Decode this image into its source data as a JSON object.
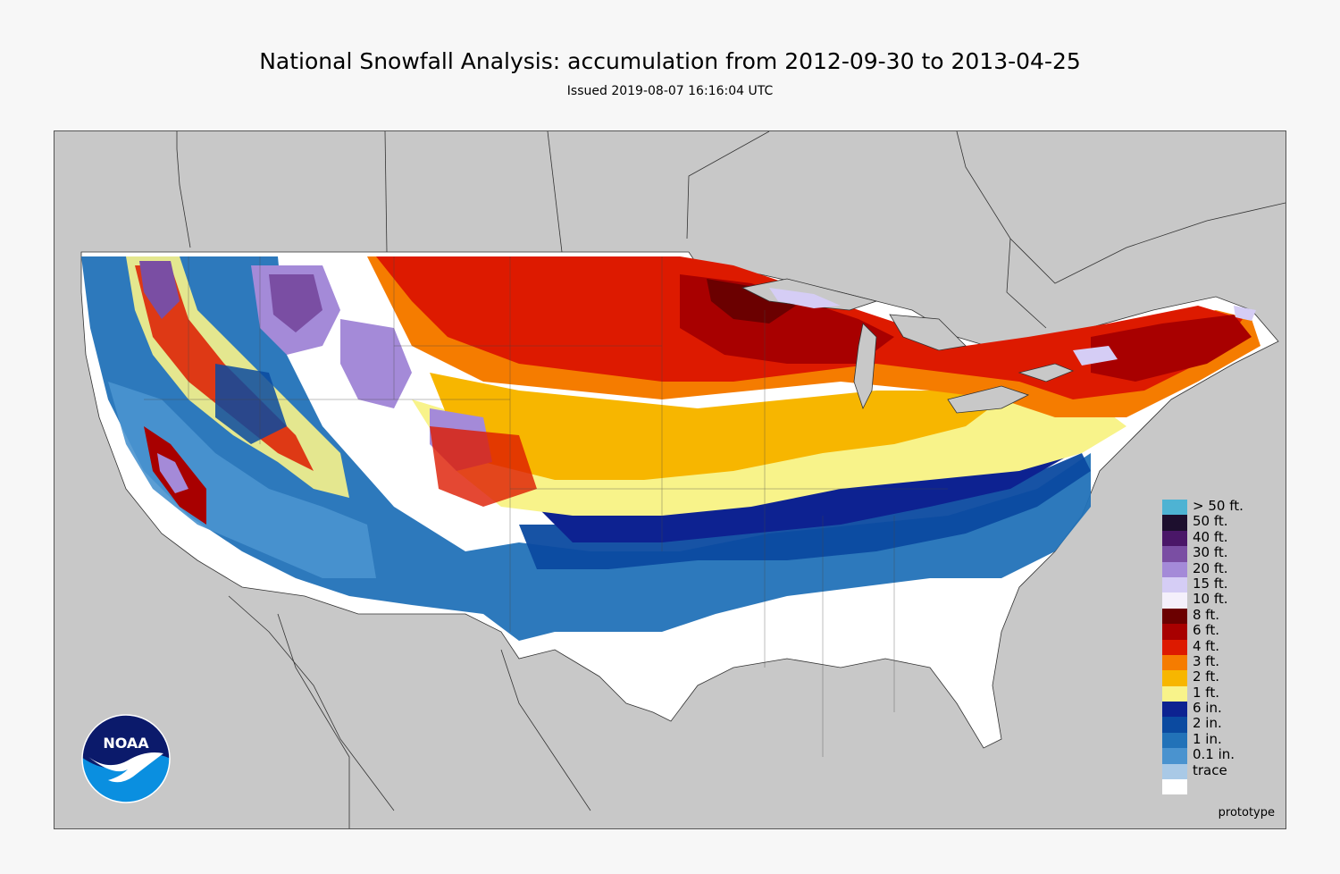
{
  "header": {
    "title": "National Snowfall Analysis: accumulation from 2012-09-30 to 2013-04-25",
    "subtitle": "Issued 2019-08-07 16:16:04 UTC"
  },
  "map": {
    "background_color": "#c8c8c8",
    "land_outline_color": "#333333",
    "watermark": "prototype"
  },
  "logo": {
    "text": "NOAA",
    "colors": {
      "top": "#0b1a6b",
      "bottom": "#0a8fe0",
      "bird": "#ffffff"
    }
  },
  "legend": {
    "items": [
      {
        "label": "> 50 ft.",
        "color": "#4eb3d3"
      },
      {
        "label": "50 ft.",
        "color": "#1d0f2e"
      },
      {
        "label": "40 ft.",
        "color": "#4a1768"
      },
      {
        "label": "30 ft.",
        "color": "#7a4ea3"
      },
      {
        "label": "20 ft.",
        "color": "#a48ad8"
      },
      {
        "label": "15 ft.",
        "color": "#d5cdf5"
      },
      {
        "label": "10 ft.",
        "color": "#f4f0fb"
      },
      {
        "label": "8 ft.",
        "color": "#6b0000"
      },
      {
        "label": "6 ft.",
        "color": "#a80000"
      },
      {
        "label": "4 ft.",
        "color": "#dd1a00"
      },
      {
        "label": "3 ft.",
        "color": "#f57c00"
      },
      {
        "label": "2 ft.",
        "color": "#f7b600"
      },
      {
        "label": "1 ft.",
        "color": "#f8f38a"
      },
      {
        "label": "6 in.",
        "color": "#0d2291"
      },
      {
        "label": "2 in.",
        "color": "#0b4aa0"
      },
      {
        "label": "1 in.",
        "color": "#2272b8"
      },
      {
        "label": "0.1 in.",
        "color": "#4a93cf"
      },
      {
        "label": "trace",
        "color": "#a9c9e6"
      },
      {
        "label": "",
        "color": "#ffffff"
      }
    ]
  }
}
